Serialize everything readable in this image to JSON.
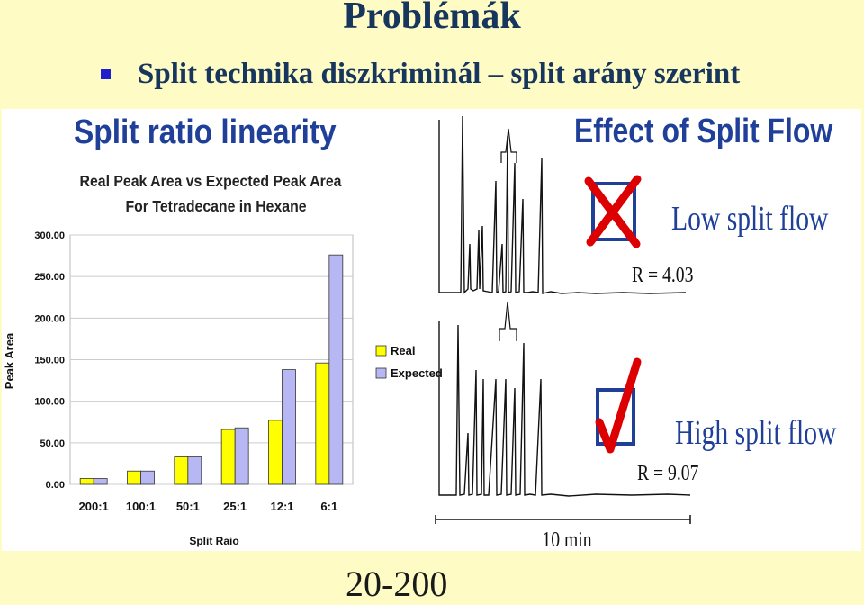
{
  "slide": {
    "title": "Problémák",
    "bullet": "Split technika diszkriminál – split arány szerint",
    "footer": "20-200"
  },
  "left_panel": {
    "heading": "Split ratio linearity"
  },
  "right_panel": {
    "heading": "Effect of Split Flow",
    "low_label": "Low split flow",
    "low_r": "R = 4.03",
    "high_label": "High split flow",
    "high_r": "R = 9.07",
    "time_scale": "10 min"
  },
  "chart_data": {
    "type": "bar",
    "title": "Real Peak Area vs Expected Peak Area",
    "subtitle": "For Tetradecane in Hexane",
    "xlabel": "Split Raio",
    "ylabel": "Peak Area",
    "ylim": [
      0,
      300
    ],
    "yticks": [
      "0.00",
      "50.00",
      "100.00",
      "150.00",
      "200.00",
      "250.00",
      "300.00"
    ],
    "legend_position": "right",
    "categories": [
      "200:1",
      "100:1",
      "50:1",
      "25:1",
      "12:1",
      "6:1"
    ],
    "series": [
      {
        "name": "Real",
        "color": "#ffff00",
        "values": [
          7,
          16,
          33,
          66,
          77,
          146
        ]
      },
      {
        "name": "Expected",
        "color": "#b7b7f4",
        "values": [
          7,
          16,
          33,
          68,
          138,
          276
        ]
      }
    ]
  }
}
